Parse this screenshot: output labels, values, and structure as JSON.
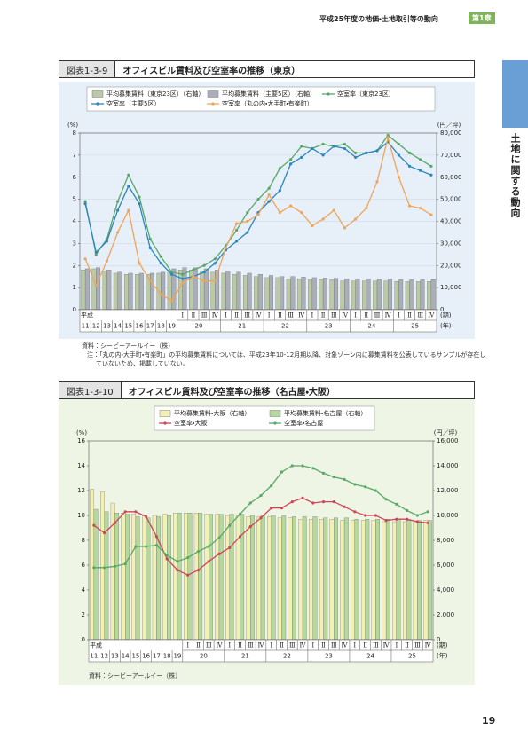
{
  "header": {
    "running_title": "平成25年度の地価・土地取引等の動向",
    "chapter": "第1章"
  },
  "side_tab": "土地に関する動向",
  "page_number": "19",
  "figures": [
    {
      "number": "図表1-3-9",
      "title": "オフィスビル賃料及び空室率の推移（東京）",
      "chart_data": {
        "type": "combo",
        "y_label": "(%)",
        "y2_label": "(円／坪)",
        "era_label": "平成",
        "x_unit_quarter": "(期)",
        "x_unit_year": "(年)",
        "categories": [
          "11",
          "12",
          "13",
          "14",
          "15",
          "16",
          "17",
          "18",
          "19",
          "Ⅰ",
          "Ⅱ",
          "Ⅲ",
          "Ⅳ",
          "Ⅰ",
          "Ⅱ",
          "Ⅲ",
          "Ⅳ",
          "Ⅰ",
          "Ⅱ",
          "Ⅲ",
          "Ⅳ",
          "Ⅰ",
          "Ⅱ",
          "Ⅲ",
          "Ⅳ",
          "Ⅰ",
          "Ⅱ",
          "Ⅲ",
          "Ⅳ",
          "Ⅰ",
          "Ⅱ",
          "Ⅲ",
          "Ⅳ"
        ],
        "year_groups": [
          "20",
          "21",
          "22",
          "23",
          "24",
          "25"
        ],
        "ylim": [
          0,
          8
        ],
        "yticks": [
          0,
          1,
          2,
          3,
          4,
          5,
          6,
          7,
          8
        ],
        "y2lim": [
          0,
          80000
        ],
        "y2ticks": [
          0,
          {
            "value": 10000,
            "label": "10,000"
          },
          {
            "value": 20000,
            "label": "20,000"
          },
          {
            "value": 30000,
            "label": "30,000"
          },
          {
            "value": 40000,
            "label": "40,000"
          },
          {
            "value": 50000,
            "label": "50,000"
          },
          {
            "value": 60000,
            "label": "60,000"
          },
          {
            "value": 70000,
            "label": "70,000"
          },
          {
            "value": 80000,
            "label": "80,000"
          }
        ],
        "grid": true,
        "series": [
          {
            "name": "平均募集賃料（東京23区）（右軸）",
            "kind": "bar",
            "axis": "y2",
            "color": "#b9caa4",
            "values": [
              18000,
              18500,
              17500,
              16500,
              16000,
              16000,
              16000,
              16500,
              17500,
              18000,
              18000,
              17500,
              17000,
              16500,
              16000,
              15500,
              15000,
              14500,
              14500,
              14000,
              14000,
              13500,
              13500,
              13500,
              13000,
              13000,
              13000,
              13000,
              13000,
              12800,
              12700,
              12700,
              12800
            ]
          },
          {
            "name": "平均募集賃料（主要5区）（右軸）",
            "kind": "bar",
            "axis": "y2",
            "color": "#a9aeb8",
            "values": [
              18500,
              19000,
              18000,
              17000,
              16500,
              16500,
              16500,
              17000,
              18500,
              19000,
              19000,
              18500,
              18000,
              17500,
              17000,
              16500,
              16000,
              15500,
              15000,
              15000,
              14800,
              14500,
              14300,
              14200,
              14000,
              13800,
              13800,
              13700,
              13700,
              13500,
              13500,
              13500,
              13600
            ]
          },
          {
            "name": "空室率（東京23区）",
            "kind": "line",
            "color": "#5aa66a",
            "values": [
              4.9,
              2.5,
              3.2,
              4.9,
              6.1,
              5.1,
              3.2,
              2.4,
              1.7,
              1.6,
              1.8,
              2.0,
              2.3,
              2.9,
              3.6,
              4.4,
              5.0,
              5.5,
              6.4,
              6.8,
              7.4,
              7.3,
              7.5,
              7.4,
              7.5,
              7.1,
              7.1,
              7.2,
              7.9,
              7.5,
              7.1,
              6.8,
              6.5
            ]
          },
          {
            "name": "空室率（主要5区）",
            "kind": "line",
            "color": "#2a86c0",
            "values": [
              4.8,
              2.6,
              3.1,
              4.5,
              5.6,
              4.8,
              2.8,
              2.1,
              1.6,
              1.4,
              1.5,
              1.7,
              2.1,
              2.7,
              3.1,
              3.5,
              4.4,
              4.9,
              5.4,
              6.6,
              6.9,
              7.3,
              7.0,
              7.4,
              7.3,
              6.9,
              7.1,
              7.2,
              7.6,
              7.0,
              6.5,
              6.3,
              6.1
            ]
          },
          {
            "name": "空室率（丸の内・大手町・有楽町）",
            "kind": "line",
            "color": "#f0a45a",
            "values": [
              2.3,
              1.1,
              2.2,
              3.5,
              4.5,
              2.1,
              1.3,
              0.7,
              0.4,
              1.2,
              1.5,
              1.3,
              1.3,
              2.8,
              3.9,
              4.0,
              4.3,
              5.2,
              4.4,
              4.7,
              4.4,
              3.8,
              4.1,
              4.5,
              3.7,
              4.1,
              4.6,
              5.8,
              7.8,
              6.0,
              4.7,
              4.6,
              4.3
            ]
          }
        ]
      },
      "notes": [
        "資料：シービーアールイー（株）",
        "注：「丸の内・大手町・有楽町」の平均募集賃料については、平成23年10-12月期以降、対象ゾーン内に募集賃料を公表しているサンプルが存在していないため、掲載していない。"
      ]
    },
    {
      "number": "図表1-3-10",
      "title": "オフィスビル賃料及び空室率の推移（名古屋・大阪）",
      "chart_data": {
        "type": "combo",
        "y_label": "(%)",
        "y2_label": "(円／坪)",
        "era_label": "平成",
        "x_unit_quarter": "(期)",
        "x_unit_year": "(年)",
        "categories": [
          "11",
          "12",
          "13",
          "14",
          "15",
          "16",
          "17",
          "18",
          "19",
          "Ⅰ",
          "Ⅱ",
          "Ⅲ",
          "Ⅳ",
          "Ⅰ",
          "Ⅱ",
          "Ⅲ",
          "Ⅳ",
          "Ⅰ",
          "Ⅱ",
          "Ⅲ",
          "Ⅳ",
          "Ⅰ",
          "Ⅱ",
          "Ⅲ",
          "Ⅳ",
          "Ⅰ",
          "Ⅱ",
          "Ⅲ",
          "Ⅳ",
          "Ⅰ",
          "Ⅱ",
          "Ⅲ",
          "Ⅳ"
        ],
        "year_groups": [
          "20",
          "21",
          "22",
          "23",
          "24",
          "25"
        ],
        "ylim": [
          0,
          16
        ],
        "yticks": [
          0,
          2,
          4,
          6,
          8,
          10,
          12,
          14,
          16
        ],
        "y2lim": [
          0,
          16000
        ],
        "y2ticks": [
          0,
          {
            "value": 2000,
            "label": "2,000"
          },
          {
            "value": 4000,
            "label": "4,000"
          },
          {
            "value": 6000,
            "label": "6,000"
          },
          {
            "value": 8000,
            "label": "8,000"
          },
          {
            "value": 10000,
            "label": "10,000"
          },
          {
            "value": 12000,
            "label": "12,000"
          },
          {
            "value": 14000,
            "label": "14,000"
          },
          {
            "value": 16000,
            "label": "16,000"
          }
        ],
        "grid": false,
        "series": [
          {
            "name": "平均募集賃料・大阪（右軸）",
            "kind": "bar",
            "axis": "y2",
            "color": "#f3f0b4",
            "values": [
              12100,
              11900,
              11000,
              10200,
              10100,
              10000,
              10000,
              10100,
              10200,
              10200,
              10200,
              10100,
              10100,
              10000,
              10000,
              9900,
              9900,
              9900,
              9800,
              9800,
              9700,
              9700,
              9700,
              9700,
              9600,
              9600,
              9600,
              9600,
              9500,
              9500,
              9500,
              9500,
              9600
            ]
          },
          {
            "name": "平均募集賃料・名古屋（右軸）",
            "kind": "bar",
            "axis": "y2",
            "color": "#b5d99c",
            "values": [
              10500,
              10300,
              10200,
              10100,
              9900,
              9800,
              9900,
              10000,
              10200,
              10200,
              10200,
              10100,
              10100,
              10100,
              10100,
              10000,
              10000,
              10000,
              10000,
              9900,
              9900,
              9900,
              9800,
              9800,
              9800,
              9700,
              9700,
              9700,
              9700,
              9700,
              9600,
              9600,
              9600
            ]
          },
          {
            "name": "空室率・大阪",
            "kind": "line",
            "color": "#cf4558",
            "values": [
              9.2,
              8.6,
              9.4,
              10.3,
              10.3,
              9.9,
              8.3,
              6.5,
              5.6,
              5.2,
              5.6,
              6.3,
              6.9,
              7.4,
              8.3,
              9.1,
              9.8,
              10.6,
              10.6,
              11.1,
              11.4,
              11.0,
              11.1,
              11.1,
              10.7,
              10.3,
              10.0,
              10.0,
              9.6,
              9.7,
              9.7,
              9.5,
              9.4
            ]
          },
          {
            "name": "空室率・名古屋",
            "kind": "line",
            "color": "#58a968",
            "values": [
              5.8,
              5.8,
              5.9,
              6.1,
              7.5,
              7.5,
              7.6,
              6.8,
              6.3,
              6.6,
              7.1,
              7.5,
              8.2,
              9.2,
              10.1,
              11.0,
              11.6,
              12.4,
              13.5,
              14.0,
              14.0,
              13.8,
              13.4,
              13.1,
              12.9,
              12.5,
              12.3,
              12.0,
              11.3,
              10.9,
              10.4,
              10.0,
              10.3
            ]
          }
        ]
      },
      "notes": [
        "資料：シービーアールイー（株）"
      ]
    }
  ]
}
